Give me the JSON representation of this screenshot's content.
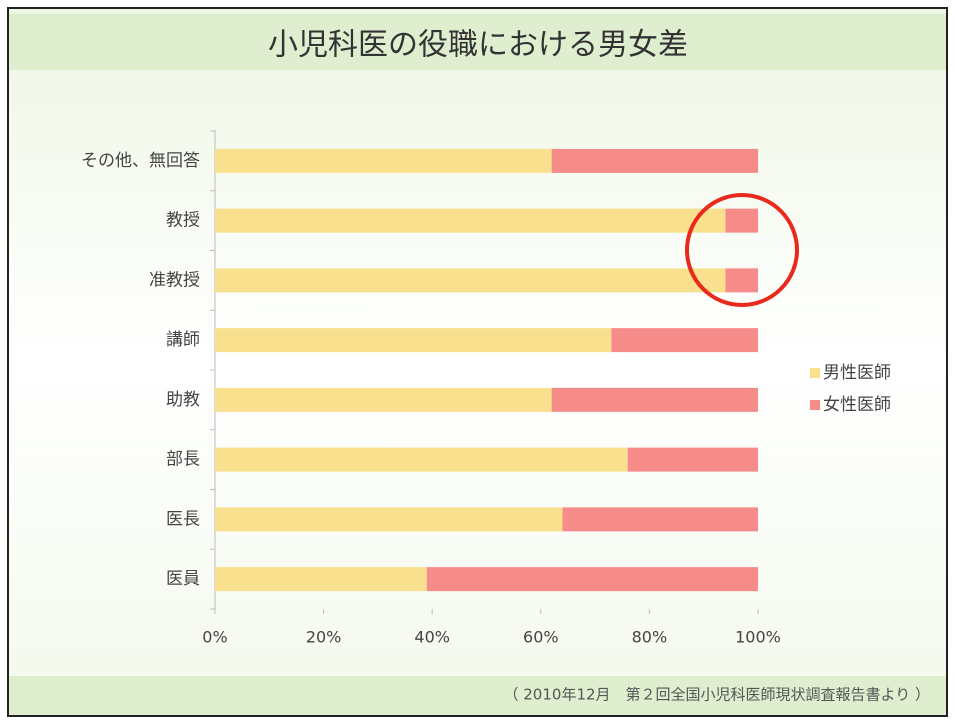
{
  "chart_data": {
    "type": "stacked-barh",
    "title": "小児科医の役職における男女差",
    "categories": [
      "その他、無回答",
      "教授",
      "准教授",
      "講師",
      "助教",
      "部長",
      "医長",
      "医員"
    ],
    "series": [
      {
        "name": "男性医師",
        "color": "#f9e08e",
        "values": [
          62,
          94,
          94,
          73,
          62,
          76,
          64,
          39
        ]
      },
      {
        "name": "女性医師",
        "color": "#f68c8a",
        "values": [
          38,
          6,
          6,
          27,
          38,
          24,
          36,
          61
        ]
      }
    ],
    "xlim": [
      0,
      100
    ],
    "xticks": [
      {
        "value": 0,
        "label": "0%"
      },
      {
        "value": 20,
        "label": "20%"
      },
      {
        "value": 40,
        "label": "40%"
      },
      {
        "value": 60,
        "label": "60%"
      },
      {
        "value": 80,
        "label": "80%"
      },
      {
        "value": 100,
        "label": "100%"
      }
    ],
    "legend": "right",
    "footnote": "（ 2010年12月　第２回全国小児科医師現状調査報告書より ）"
  }
}
